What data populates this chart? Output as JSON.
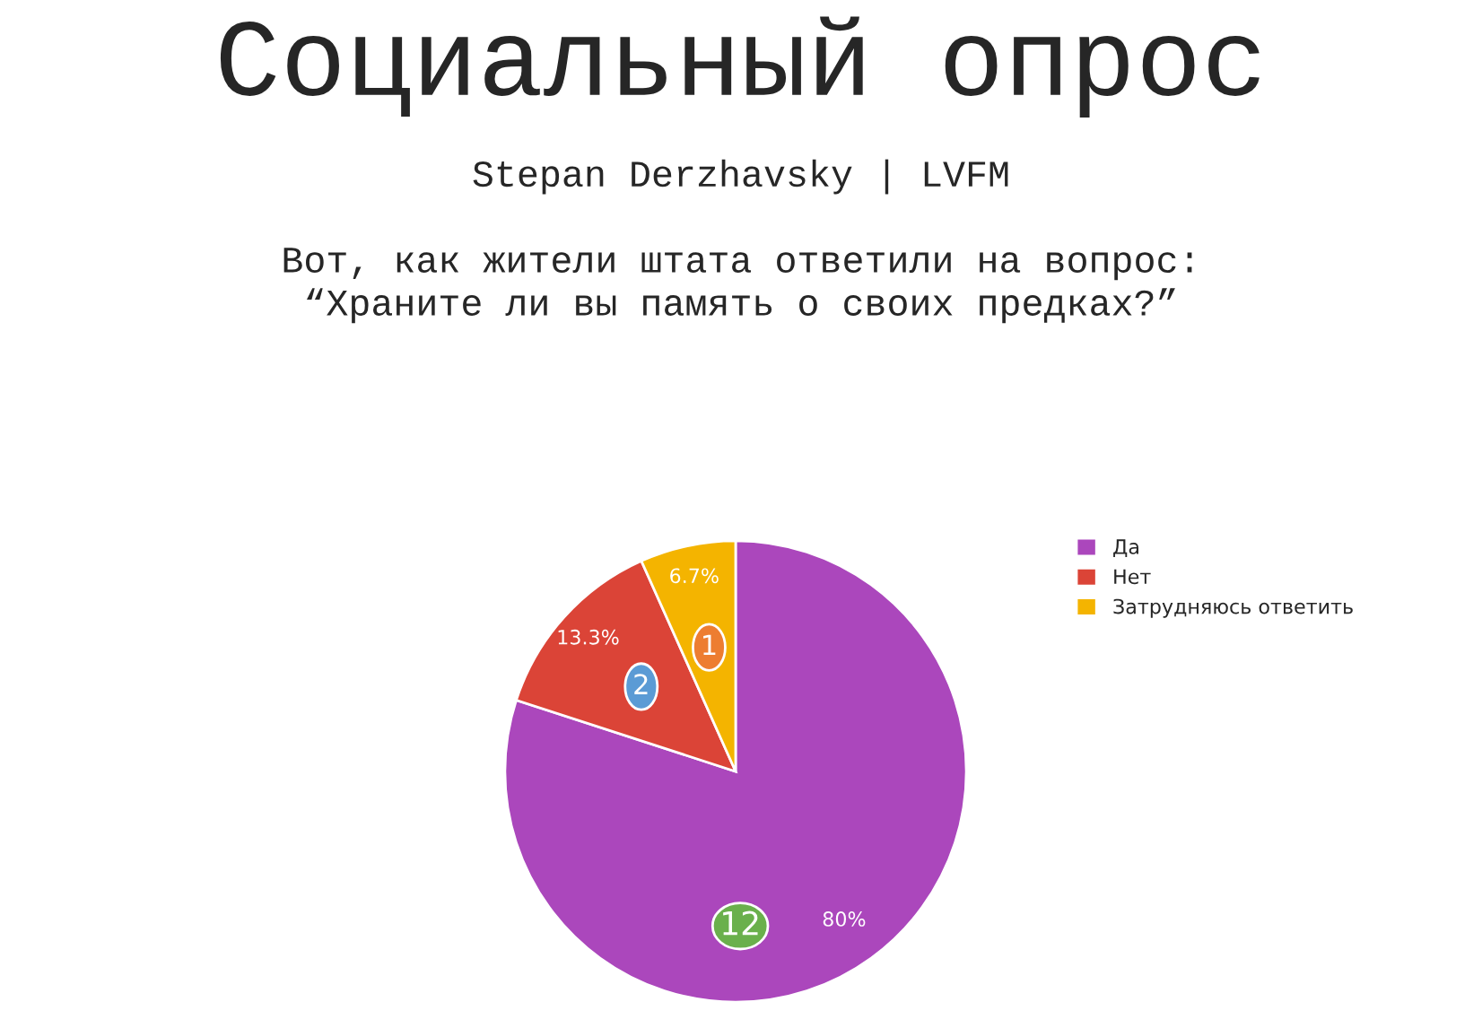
{
  "chart_data": {
    "type": "pie",
    "title": "Социальный опрос",
    "subtitle": "Stepan Derzhavsky | LVFM\n\nВот, как жители штата ответили на вопрос:\n“Храните ли вы память о своих предках?”",
    "categories": [
      "Да",
      "Нет",
      "Затрудняюсь ответить"
    ],
    "values": [
      80,
      13.3,
      6.7
    ],
    "annotations": [
      "12",
      "2",
      "1"
    ],
    "colors": [
      "#ab47bc",
      "#db4437",
      "#f4b400"
    ],
    "value_labels": [
      "80%",
      "13.3%",
      "6.7%"
    ],
    "legend": "right"
  }
}
